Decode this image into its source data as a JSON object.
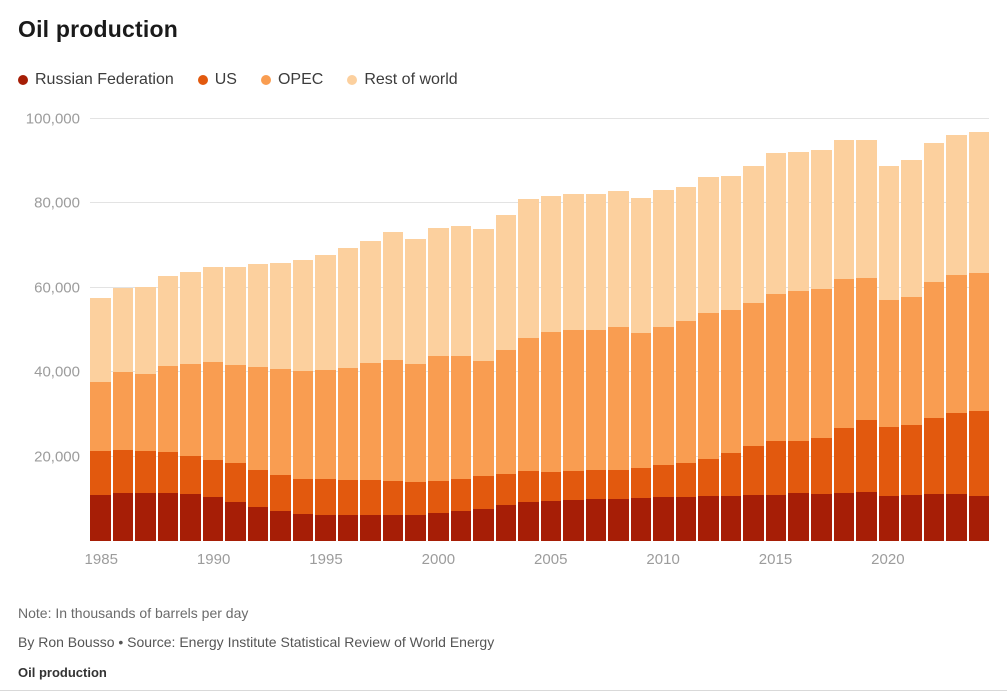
{
  "title": "Oil production",
  "legend": [
    {
      "label": "Russian Federation",
      "color": "#a61e06"
    },
    {
      "label": "US",
      "color": "#e2590e"
    },
    {
      "label": "OPEC",
      "color": "#f99d51"
    },
    {
      "label": "Rest of world",
      "color": "#fcd09e"
    }
  ],
  "chart_data": {
    "type": "bar",
    "stacked": true,
    "title": "Oil production",
    "note": "Note: In thousands of barrels per day",
    "byline": "By Ron Bousso • Source: Energy Institute Statistical Review of World Energy",
    "footer": "Oil production",
    "xlabel": "",
    "ylabel": "Thousands of barrels per day",
    "ylim": [
      0,
      100000
    ],
    "yticks": [
      20000,
      40000,
      60000,
      80000,
      100000
    ],
    "ytick_labels": [
      "20,000",
      "40,000",
      "60,000",
      "80,000",
      "100,000"
    ],
    "xticks": [
      1985,
      1990,
      1995,
      2000,
      2005,
      2010,
      2015,
      2020
    ],
    "grid": "horizontal",
    "legend_position": "top",
    "categories": [
      1985,
      1986,
      1987,
      1988,
      1989,
      1990,
      1991,
      1992,
      1993,
      1994,
      1995,
      1996,
      1997,
      1998,
      1999,
      2000,
      2001,
      2002,
      2003,
      2004,
      2005,
      2006,
      2007,
      2008,
      2009,
      2010,
      2011,
      2012,
      2013,
      2014,
      2015,
      2016,
      2017,
      2018,
      2019,
      2020,
      2021,
      2022,
      2023,
      2024
    ],
    "series": [
      {
        "name": "Russian Federation",
        "color": "#a61e06",
        "values": [
          10850,
          11306,
          11418,
          11444,
          11100,
          10405,
          9326,
          7993,
          7173,
          6419,
          6288,
          6114,
          6227,
          6169,
          6178,
          6536,
          7056,
          7698,
          8544,
          9287,
          9552,
          9818,
          10044,
          9950,
          10139,
          10365,
          10510,
          10643,
          10779,
          10838,
          11007,
          11269,
          11255,
          11438,
          11540,
          10667,
          10944,
          11202,
          11075,
          10750
        ]
      },
      {
        "name": "US",
        "color": "#e2590e",
        "values": [
          10580,
          10231,
          9944,
          9765,
          9159,
          8914,
          9076,
          8868,
          8583,
          8389,
          8322,
          8295,
          8269,
          8011,
          7731,
          7733,
          7669,
          7626,
          7400,
          7228,
          6895,
          6841,
          6860,
          6783,
          7263,
          7549,
          7861,
          8904,
          10071,
          11768,
          12750,
          12354,
          13135,
          15311,
          17094,
          16458,
          16585,
          17845,
          19358,
          20100
        ]
      },
      {
        "name": "OPEC",
        "color": "#f99d51",
        "values": [
          16200,
          18500,
          18300,
          20300,
          21600,
          23200,
          23300,
          24400,
          25100,
          25400,
          26000,
          26500,
          27700,
          28800,
          28000,
          29700,
          29000,
          27300,
          29300,
          31600,
          33100,
          33300,
          33000,
          33900,
          31900,
          32700,
          33700,
          34600,
          33900,
          33700,
          34700,
          35700,
          35400,
          35300,
          33800,
          29900,
          30300,
          32400,
          32600,
          32700
        ]
      },
      {
        "name": "Rest of world",
        "color": "#fcd09e",
        "values": [
          19870,
          19963,
          20638,
          21291,
          21941,
          22481,
          23298,
          24339,
          24944,
          26492,
          27190,
          28591,
          29004,
          30220,
          29591,
          30331,
          30875,
          31376,
          31956,
          32885,
          32253,
          32341,
          32296,
          32267,
          31898,
          32586,
          31929,
          32053,
          31850,
          32494,
          33443,
          32877,
          32810,
          32951,
          32566,
          31775,
          32571,
          32953,
          33267,
          33350
        ]
      }
    ]
  }
}
